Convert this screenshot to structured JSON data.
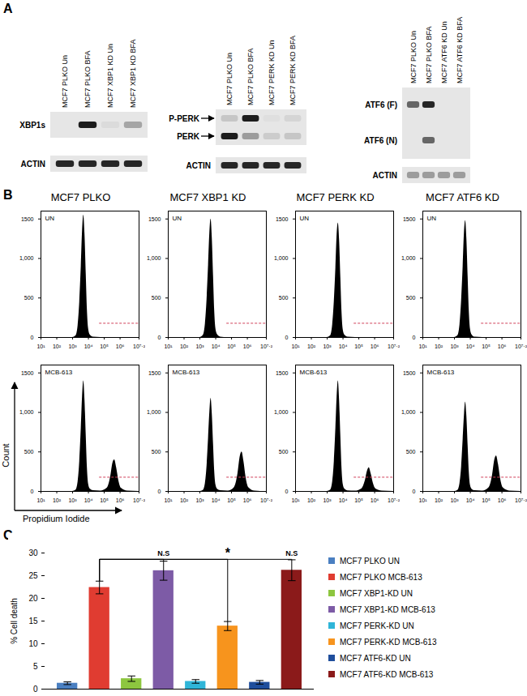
{
  "panel_labels": [
    "A",
    "B",
    "C"
  ],
  "blots": [
    {
      "lanes": [
        "MCF7 PLKO Un",
        "MCF7 PLKO BFA",
        "MCF7 XBP1 KD Un",
        "MCF7 XBP1 KD BFA"
      ],
      "rows": [
        {
          "label": "XBP1s",
          "intensity": [
            0,
            0.95,
            0.05,
            0.3
          ]
        },
        {
          "label": "ACTIN",
          "intensity": [
            0.9,
            0.9,
            0.9,
            0.9
          ]
        }
      ]
    },
    {
      "lanes": [
        "MCF7 PLKO Un",
        "MCF7 PLKO BFA",
        "MCF7 PERK KD Un",
        "MCF7 PERK KD BFA"
      ],
      "rows": [
        {
          "label": "P-PERK",
          "marker": "arrow",
          "intensity": [
            0.15,
            0.95,
            0.03,
            0.08
          ]
        },
        {
          "label": "PERK",
          "marker": "arrow",
          "intensity": [
            0.95,
            0.35,
            0.12,
            0.15
          ]
        },
        {
          "label": "ACTIN",
          "intensity": [
            0.9,
            0.9,
            0.9,
            0.9
          ]
        }
      ]
    },
    {
      "lanes": [
        "MCF7 PLKO Un",
        "MCF7 PLKO BFA",
        "MCF7 ATF6 KD Un",
        "MCF7 ATF6 KD BFA"
      ],
      "rows": [
        {
          "label": "ATF6 (F)",
          "intensity": [
            0.6,
            0.9,
            0,
            0
          ]
        },
        {
          "label": "ATF6 (N)",
          "intensity": [
            0,
            0.6,
            0,
            0
          ]
        },
        {
          "label": "ACTIN",
          "intensity": [
            0.35,
            0.35,
            0.35,
            0.35
          ]
        }
      ]
    }
  ],
  "axis_labels": {
    "x": "Propidium Iodide",
    "y": "Count"
  },
  "chart_data": [
    {
      "type": "area",
      "title": "MCF7 PLKO",
      "annotation": "UN",
      "color": "#000000",
      "log": "x",
      "x": [
        10,
        1000,
        1600,
        2200,
        2800,
        3500,
        4200,
        5000,
        6000,
        7200,
        8500,
        10000,
        13000,
        20000,
        60000,
        150000,
        250000,
        350000,
        450000,
        600000,
        800000,
        1200000,
        3000000,
        15848932
      ],
      "values": [
        0,
        0,
        20,
        150,
        450,
        900,
        1350,
        1550,
        1300,
        800,
        350,
        120,
        30,
        5,
        0,
        0,
        0,
        0,
        0,
        0,
        0,
        0,
        0,
        0
      ],
      "xlim": [
        10,
        15848932
      ],
      "xticks": [
        {
          "value": 10,
          "label": "10¹"
        },
        {
          "value": 100,
          "label": "10²"
        },
        {
          "value": 1000,
          "label": "10³"
        },
        {
          "value": 10000,
          "label": "10⁴"
        },
        {
          "value": 100000,
          "label": "10⁵"
        },
        {
          "value": 1000000,
          "label": "10⁶"
        },
        {
          "value": 15848932,
          "label": "10⁷·²"
        }
      ],
      "ylim": [
        0,
        1600
      ],
      "yticks": [
        0,
        500,
        {
          "value": 1000,
          "label": "1,000"
        },
        1500
      ],
      "gate": {
        "x": [
          50000,
          15848932
        ],
        "y": 180,
        "color": "#d0405a"
      }
    },
    {
      "type": "area",
      "title": "MCF7 XBP1 KD",
      "annotation": "UN",
      "color": "#000000",
      "log": "x",
      "x": [
        10,
        1000,
        1600,
        2200,
        2800,
        3500,
        4200,
        5000,
        6000,
        7200,
        8500,
        10000,
        13000,
        20000,
        60000,
        150000,
        250000,
        350000,
        450000,
        600000,
        800000,
        1200000,
        3000000,
        15848932
      ],
      "values": [
        0,
        0,
        25,
        170,
        480,
        920,
        1320,
        1500,
        1260,
        780,
        340,
        120,
        35,
        6,
        0,
        0,
        0,
        0,
        0,
        0,
        0,
        0,
        0,
        0
      ],
      "xlim": [
        10,
        15848932
      ],
      "xticks": [
        {
          "value": 10,
          "label": "10¹"
        },
        {
          "value": 100,
          "label": "10²"
        },
        {
          "value": 1000,
          "label": "10³"
        },
        {
          "value": 10000,
          "label": "10⁴"
        },
        {
          "value": 100000,
          "label": "10⁵"
        },
        {
          "value": 1000000,
          "label": "10⁶"
        },
        {
          "value": 15848932,
          "label": "10⁷·²"
        }
      ],
      "ylim": [
        0,
        1600
      ],
      "yticks": [
        0,
        500,
        {
          "value": 1000,
          "label": "1,000"
        },
        1500
      ],
      "gate": {
        "x": [
          50000,
          15848932
        ],
        "y": 180,
        "color": "#d0405a"
      }
    },
    {
      "type": "area",
      "title": "MCF7 PERK KD",
      "annotation": "UN",
      "color": "#000000",
      "log": "x",
      "x": [
        10,
        1000,
        1600,
        2200,
        2800,
        3500,
        4200,
        5000,
        6000,
        7200,
        8500,
        10000,
        13000,
        20000,
        60000,
        150000,
        250000,
        350000,
        450000,
        600000,
        800000,
        1200000,
        3000000,
        15848932
      ],
      "values": [
        0,
        0,
        20,
        160,
        460,
        880,
        1300,
        1450,
        1230,
        760,
        330,
        110,
        30,
        5,
        0,
        0,
        0,
        0,
        0,
        0,
        0,
        0,
        0,
        0
      ],
      "xlim": [
        10,
        15848932
      ],
      "xticks": [
        {
          "value": 10,
          "label": "10¹"
        },
        {
          "value": 100,
          "label": "10²"
        },
        {
          "value": 1000,
          "label": "10³"
        },
        {
          "value": 10000,
          "label": "10⁴"
        },
        {
          "value": 100000,
          "label": "10⁵"
        },
        {
          "value": 1000000,
          "label": "10⁶"
        },
        {
          "value": 15848932,
          "label": "10⁷·²"
        }
      ],
      "ylim": [
        0,
        1600
      ],
      "yticks": [
        0,
        500,
        {
          "value": 1000,
          "label": "1,000"
        },
        1500
      ],
      "gate": {
        "x": [
          50000,
          15848932
        ],
        "y": 180,
        "color": "#d0405a"
      }
    },
    {
      "type": "area",
      "title": "MCF7 ATF6 KD",
      "annotation": "UN",
      "color": "#000000",
      "log": "x",
      "x": [
        10,
        1000,
        1600,
        2200,
        2800,
        3500,
        4200,
        5000,
        6000,
        7200,
        8500,
        10000,
        13000,
        20000,
        60000,
        150000,
        250000,
        350000,
        450000,
        600000,
        800000,
        1200000,
        3000000,
        15848932
      ],
      "values": [
        0,
        0,
        22,
        160,
        470,
        900,
        1320,
        1480,
        1250,
        770,
        340,
        115,
        32,
        5,
        0,
        0,
        0,
        0,
        0,
        0,
        0,
        0,
        0,
        0
      ],
      "xlim": [
        10,
        15848932
      ],
      "xticks": [
        {
          "value": 10,
          "label": "10¹"
        },
        {
          "value": 100,
          "label": "10²"
        },
        {
          "value": 1000,
          "label": "10³"
        },
        {
          "value": 10000,
          "label": "10⁴"
        },
        {
          "value": 100000,
          "label": "10⁵"
        },
        {
          "value": 1000000,
          "label": "10⁶"
        },
        {
          "value": 15848932,
          "label": "10⁷·²"
        }
      ],
      "ylim": [
        0,
        1600
      ],
      "yticks": [
        0,
        500,
        {
          "value": 1000,
          "label": "1,000"
        },
        1500
      ],
      "gate": {
        "x": [
          50000,
          15848932
        ],
        "y": 180,
        "color": "#d0405a"
      }
    },
    {
      "type": "area",
      "annotation": "MCB-613",
      "color": "#000000",
      "log": "x",
      "x": [
        10,
        1000,
        1600,
        2200,
        2800,
        3500,
        4200,
        5000,
        6000,
        7200,
        8500,
        10000,
        13000,
        20000,
        60000,
        150000,
        250000,
        350000,
        450000,
        600000,
        800000,
        1200000,
        3000000,
        15848932
      ],
      "values": [
        0,
        0,
        15,
        120,
        380,
        800,
        1200,
        1400,
        1150,
        700,
        300,
        100,
        30,
        10,
        5,
        40,
        180,
        360,
        400,
        300,
        150,
        40,
        5,
        0
      ],
      "xlim": [
        10,
        15848932
      ],
      "xticks": [
        {
          "value": 10,
          "label": "10¹"
        },
        {
          "value": 100,
          "label": "10²"
        },
        {
          "value": 1000,
          "label": "10³"
        },
        {
          "value": 10000,
          "label": "10⁴"
        },
        {
          "value": 100000,
          "label": "10⁵"
        },
        {
          "value": 1000000,
          "label": "10⁶"
        },
        {
          "value": 15848932,
          "label": "10⁷·²"
        }
      ],
      "ylim": [
        0,
        1600
      ],
      "yticks": [
        0,
        500,
        {
          "value": 1000,
          "label": "1,000"
        },
        1500
      ],
      "gate": {
        "x": [
          50000,
          15848932
        ],
        "y": 180,
        "color": "#d0405a"
      }
    },
    {
      "type": "area",
      "annotation": "MCB-613",
      "color": "#000000",
      "log": "x",
      "x": [
        10,
        1000,
        1600,
        2200,
        2800,
        3500,
        4200,
        5000,
        6000,
        7200,
        8500,
        10000,
        13000,
        20000,
        60000,
        150000,
        250000,
        350000,
        450000,
        600000,
        800000,
        1200000,
        3000000,
        15848932
      ],
      "values": [
        0,
        0,
        12,
        100,
        320,
        680,
        1000,
        1180,
        980,
        600,
        260,
        90,
        28,
        10,
        6,
        50,
        220,
        440,
        500,
        380,
        190,
        50,
        6,
        0
      ],
      "xlim": [
        10,
        15848932
      ],
      "xticks": [
        {
          "value": 10,
          "label": "10¹"
        },
        {
          "value": 100,
          "label": "10²"
        },
        {
          "value": 1000,
          "label": "10³"
        },
        {
          "value": 10000,
          "label": "10⁴"
        },
        {
          "value": 100000,
          "label": "10⁵"
        },
        {
          "value": 1000000,
          "label": "10⁶"
        },
        {
          "value": 15848932,
          "label": "10⁷·²"
        }
      ],
      "ylim": [
        0,
        1600
      ],
      "yticks": [
        0,
        500,
        {
          "value": 1000,
          "label": "1,000"
        },
        1500
      ],
      "gate": {
        "x": [
          50000,
          15848932
        ],
        "y": 180,
        "color": "#d0405a"
      }
    },
    {
      "type": "area",
      "annotation": "MCB-613",
      "color": "#000000",
      "log": "x",
      "x": [
        10,
        1000,
        1600,
        2200,
        2800,
        3500,
        4200,
        5000,
        6000,
        7200,
        8500,
        10000,
        13000,
        20000,
        60000,
        150000,
        250000,
        350000,
        450000,
        600000,
        800000,
        1200000,
        3000000,
        15848932
      ],
      "values": [
        0,
        0,
        15,
        120,
        380,
        800,
        1200,
        1400,
        1150,
        700,
        300,
        100,
        30,
        8,
        4,
        30,
        130,
        260,
        300,
        220,
        110,
        30,
        4,
        0
      ],
      "xlim": [
        10,
        15848932
      ],
      "xticks": [
        {
          "value": 10,
          "label": "10¹"
        },
        {
          "value": 100,
          "label": "10²"
        },
        {
          "value": 1000,
          "label": "10³"
        },
        {
          "value": 10000,
          "label": "10⁴"
        },
        {
          "value": 100000,
          "label": "10⁵"
        },
        {
          "value": 1000000,
          "label": "10⁶"
        },
        {
          "value": 15848932,
          "label": "10⁷·²"
        }
      ],
      "ylim": [
        0,
        1600
      ],
      "yticks": [
        0,
        500,
        {
          "value": 1000,
          "label": "1,000"
        },
        1500
      ],
      "gate": {
        "x": [
          50000,
          15848932
        ],
        "y": 180,
        "color": "#d0405a"
      }
    },
    {
      "type": "area",
      "annotation": "MCB-613",
      "color": "#000000",
      "log": "x",
      "x": [
        10,
        1000,
        1600,
        2200,
        2800,
        3500,
        4200,
        5000,
        6000,
        7200,
        8500,
        10000,
        13000,
        20000,
        60000,
        150000,
        250000,
        350000,
        450000,
        600000,
        800000,
        1200000,
        3000000,
        15848932
      ],
      "values": [
        0,
        0,
        12,
        100,
        310,
        660,
        960,
        1130,
        950,
        580,
        250,
        85,
        26,
        9,
        5,
        45,
        200,
        400,
        450,
        340,
        170,
        45,
        5,
        0
      ],
      "xlim": [
        10,
        15848932
      ],
      "xticks": [
        {
          "value": 10,
          "label": "10¹"
        },
        {
          "value": 100,
          "label": "10²"
        },
        {
          "value": 1000,
          "label": "10³"
        },
        {
          "value": 10000,
          "label": "10⁴"
        },
        {
          "value": 100000,
          "label": "10⁵"
        },
        {
          "value": 1000000,
          "label": "10⁶"
        },
        {
          "value": 15848932,
          "label": "10⁷·²"
        }
      ],
      "ylim": [
        0,
        1600
      ],
      "yticks": [
        0,
        500,
        {
          "value": 1000,
          "label": "1,000"
        },
        1500
      ],
      "gate": {
        "x": [
          50000,
          15848932
        ],
        "y": 180,
        "color": "#d0405a"
      }
    },
    {
      "type": "bar",
      "categories": [
        "MCF7 PLKO UN",
        "MCF7 PLKO MCB-613",
        "MCF7 XBP1-KD UN",
        "MCF7 XBP1-KD MCB-613",
        "MCF7 PERK-KD UN",
        "MCF7 PERK-KD MCB-613",
        "MCF7 ATF6-KD UN",
        "MCF7 ATF6-KD MCB-613"
      ],
      "values": [
        1.3,
        22.4,
        2.3,
        26.1,
        1.7,
        13.9,
        1.5,
        26.2
      ],
      "errors": [
        0.3,
        1.4,
        0.6,
        2.1,
        0.4,
        1.0,
        0.4,
        2.3
      ],
      "colors": [
        "#4a7fc1",
        "#e03c31",
        "#8dc63f",
        "#7d5ba6",
        "#2fb5d8",
        "#f7941d",
        "#1f4e9c",
        "#8b1a1a"
      ],
      "ylabel": "% Cell death",
      "ylim": [
        0,
        30
      ],
      "yticks": [
        0,
        5,
        10,
        15,
        20,
        25,
        30
      ],
      "tick_labels": "y",
      "legend": "right",
      "annotations": [
        {
          "from": 1,
          "to": 3,
          "y": 28.6,
          "label": "N.S"
        },
        {
          "from": 1,
          "to": 5,
          "y": 28.6,
          "label": "*"
        },
        {
          "from": 1,
          "to": 7,
          "y": 28.6,
          "label": "N.S"
        }
      ]
    }
  ]
}
